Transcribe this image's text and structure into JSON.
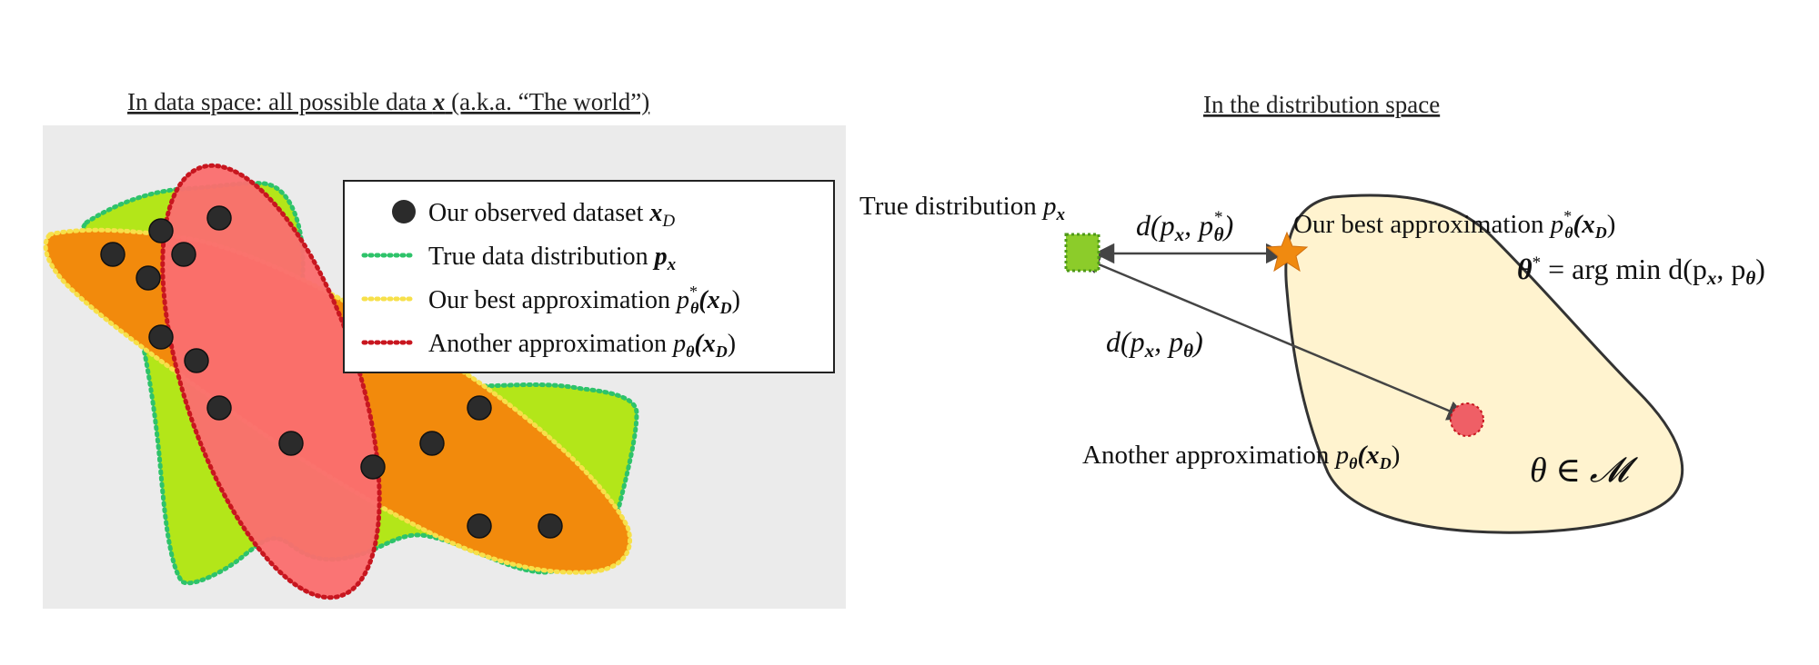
{
  "left_panel": {
    "title_prefix": "In data space: all possible data ",
    "title_var": "x",
    "title_suffix": " (a.k.a. “The world”)",
    "legend": {
      "observed_prefix": "Our observed dataset ",
      "observed_var": "x",
      "observed_sub": "D",
      "true_prefix": "True data distribution ",
      "true_var": "p",
      "true_sub": "x",
      "best_prefix": "Our best approximation ",
      "best_p": "p",
      "best_sup": "*",
      "best_sub": "θ",
      "best_arg": "(x",
      "best_arg_sub": "D",
      "best_close": ")",
      "another_prefix": "Another approximation ",
      "another_p": "p",
      "another_sub": "θ",
      "another_arg": "(x",
      "another_arg_sub": "D",
      "another_close": ")"
    },
    "colors": {
      "background": "#ebebeb",
      "true_fill": "#b3e619",
      "true_stroke": "#2ec36a",
      "best_fill": "#f28a0c",
      "best_stroke": "#f7e04a",
      "another_fill": "#fa6e6e",
      "another_stroke": "#c8161f",
      "point": "#2b2b2b"
    }
  },
  "right_panel": {
    "title": "In the distribution space",
    "true_dist_prefix": "True distribution ",
    "true_dist_p": "p",
    "true_dist_sub": "x",
    "d_best_prefix": "d(p",
    "d_best_sub1": "x",
    "d_best_mid": ", p",
    "d_best_sup": "*",
    "d_best_sub2": "θ",
    "d_best_close": ")",
    "best_prefix": "Our best approximation ",
    "best_p": "p",
    "best_sup": "*",
    "best_sub": "θ",
    "best_arg": "(x",
    "best_arg_sub": "D",
    "best_close": ")",
    "theta_star": "θ",
    "theta_star_sup": "*",
    "argmin_text": " = arg min d(p",
    "argmin_sub1": "x",
    "argmin_mid": ", p",
    "argmin_sub2": "θ",
    "argmin_close": ")",
    "d_another_prefix": "d(p",
    "d_another_sub1": "x",
    "d_another_mid": ", p",
    "d_another_sub2": "θ",
    "d_another_close": ")",
    "another_prefix": "Another approximation ",
    "another_p": "p",
    "another_sub": "θ",
    "another_arg": "(x",
    "another_arg_sub": "D",
    "another_close": ")",
    "model_space": "θ ∈ 𝓜",
    "colors": {
      "blob_fill": "#fff3cf",
      "blob_stroke": "#333333",
      "true_square_fill": "#8ccc2a",
      "true_square_stroke": "#4f9a1a",
      "star": "#f08a10",
      "another_dot": "#ef5f66",
      "arrow": "#444444"
    }
  }
}
